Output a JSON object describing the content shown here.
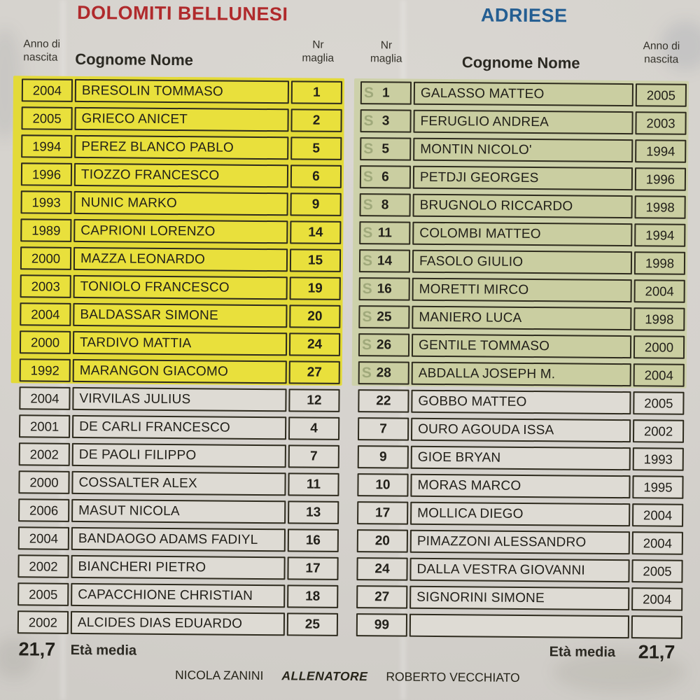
{
  "teams": [
    {
      "name": "DOLOMITI BELLUNESI",
      "accent": "#b02a2c",
      "highlight": "#e3da38",
      "headers": {
        "year_line1": "Anno di",
        "year_line2": "nascita",
        "name": "Cognome Nome",
        "nr_line1": "Nr",
        "nr_line2": "maglia"
      },
      "cell_order": [
        "year",
        "name",
        "nr"
      ],
      "eta_label": "Età media",
      "eta_value": "21,7",
      "players": [
        {
          "year": "2004",
          "name": "BRESOLIN TOMMASO",
          "nr": "1",
          "starter": true
        },
        {
          "year": "2005",
          "name": "GRIECO ANICET",
          "nr": "2",
          "starter": true
        },
        {
          "year": "1994",
          "name": "PEREZ BLANCO PABLO",
          "nr": "5",
          "starter": true
        },
        {
          "year": "1996",
          "name": "TIOZZO FRANCESCO",
          "nr": "6",
          "starter": true
        },
        {
          "year": "1993",
          "name": "NUNIC MARKO",
          "nr": "9",
          "starter": true
        },
        {
          "year": "1989",
          "name": "CAPRIONI LORENZO",
          "nr": "14",
          "starter": true
        },
        {
          "year": "2000",
          "name": "MAZZA LEONARDO",
          "nr": "15",
          "starter": true
        },
        {
          "year": "2003",
          "name": "TONIOLO FRANCESCO",
          "nr": "19",
          "starter": true
        },
        {
          "year": "2004",
          "name": "BALDASSAR SIMONE",
          "nr": "20",
          "starter": true
        },
        {
          "year": "2000",
          "name": "TARDIVO MATTIA",
          "nr": "24",
          "starter": true
        },
        {
          "year": "1992",
          "name": "MARANGON GIACOMO",
          "nr": "27",
          "starter": true
        },
        {
          "year": "2004",
          "name": "VIRVILAS JULIUS",
          "nr": "12",
          "starter": false
        },
        {
          "year": "2001",
          "name": "DE CARLI FRANCESCO",
          "nr": "4",
          "starter": false
        },
        {
          "year": "2002",
          "name": "DE PAOLI FILIPPO",
          "nr": "7",
          "starter": false
        },
        {
          "year": "2000",
          "name": "COSSALTER ALEX",
          "nr": "11",
          "starter": false
        },
        {
          "year": "2006",
          "name": "MASUT NICOLA",
          "nr": "13",
          "starter": false
        },
        {
          "year": "2004",
          "name": "BANDAOGO ADAMS FADIYL",
          "nr": "16",
          "starter": false
        },
        {
          "year": "2002",
          "name": "BIANCHERI PIETRO",
          "nr": "17",
          "starter": false
        },
        {
          "year": "2005",
          "name": "CAPACCHIONE CHRISTIAN",
          "nr": "18",
          "starter": false
        },
        {
          "year": "2002",
          "name": "ALCIDES DIAS EDUARDO",
          "nr": "25",
          "starter": false
        }
      ]
    },
    {
      "name": "ADRIESE",
      "accent": "#245e92",
      "highlight": "#cdd1aa",
      "ghost_letter": "S",
      "headers": {
        "year_line1": "Anno di",
        "year_line2": "nascita",
        "name": "Cognome Nome",
        "nr_line1": "Nr",
        "nr_line2": "maglia"
      },
      "cell_order": [
        "nr",
        "name",
        "year"
      ],
      "eta_label": "Età media",
      "eta_value": "21,7",
      "players": [
        {
          "nr": "1",
          "name": "GALASSO MATTEO",
          "year": "2005",
          "starter": true
        },
        {
          "nr": "3",
          "name": "FERUGLIO ANDREA",
          "year": "2003",
          "starter": true
        },
        {
          "nr": "5",
          "name": "MONTIN NICOLO'",
          "year": "1994",
          "starter": true
        },
        {
          "nr": "6",
          "name": "PETDJI GEORGES",
          "year": "1996",
          "starter": true
        },
        {
          "nr": "8",
          "name": "BRUGNOLO RICCARDO",
          "year": "1998",
          "starter": true
        },
        {
          "nr": "11",
          "name": "COLOMBI MATTEO",
          "year": "1994",
          "starter": true
        },
        {
          "nr": "14",
          "name": "FASOLO GIULIO",
          "year": "1998",
          "starter": true
        },
        {
          "nr": "16",
          "name": "MORETTI MIRCO",
          "year": "2004",
          "starter": true
        },
        {
          "nr": "25",
          "name": "MANIERO LUCA",
          "year": "1998",
          "starter": true
        },
        {
          "nr": "26",
          "name": "GENTILE TOMMASO",
          "year": "2000",
          "starter": true
        },
        {
          "nr": "28",
          "name": "ABDALLA JOSEPH M.",
          "year": "2004",
          "starter": true
        },
        {
          "nr": "22",
          "name": "GOBBO MATTEO",
          "year": "2005",
          "starter": false
        },
        {
          "nr": "7",
          "name": "OURO AGOUDA ISSA",
          "year": "2002",
          "starter": false
        },
        {
          "nr": "9",
          "name": "GIOE BRYAN",
          "year": "1993",
          "starter": false
        },
        {
          "nr": "10",
          "name": "MORAS MARCO",
          "year": "1995",
          "starter": false
        },
        {
          "nr": "17",
          "name": "MOLLICA DIEGO",
          "year": "2004",
          "starter": false
        },
        {
          "nr": "20",
          "name": "PIMAZZONI ALESSANDRO",
          "year": "2004",
          "starter": false
        },
        {
          "nr": "24",
          "name": "DALLA VESTRA GIOVANNI",
          "year": "2005",
          "starter": false
        },
        {
          "nr": "27",
          "name": "SIGNORINI SIMONE",
          "year": "2004",
          "starter": false
        },
        {
          "nr": "99",
          "name": "",
          "year": "",
          "starter": false
        }
      ]
    }
  ],
  "footer": {
    "coach_left": "NICOLA ZANINI",
    "role_label": "ALLENATORE",
    "coach_right": "ROBERTO VECCHIATO"
  }
}
